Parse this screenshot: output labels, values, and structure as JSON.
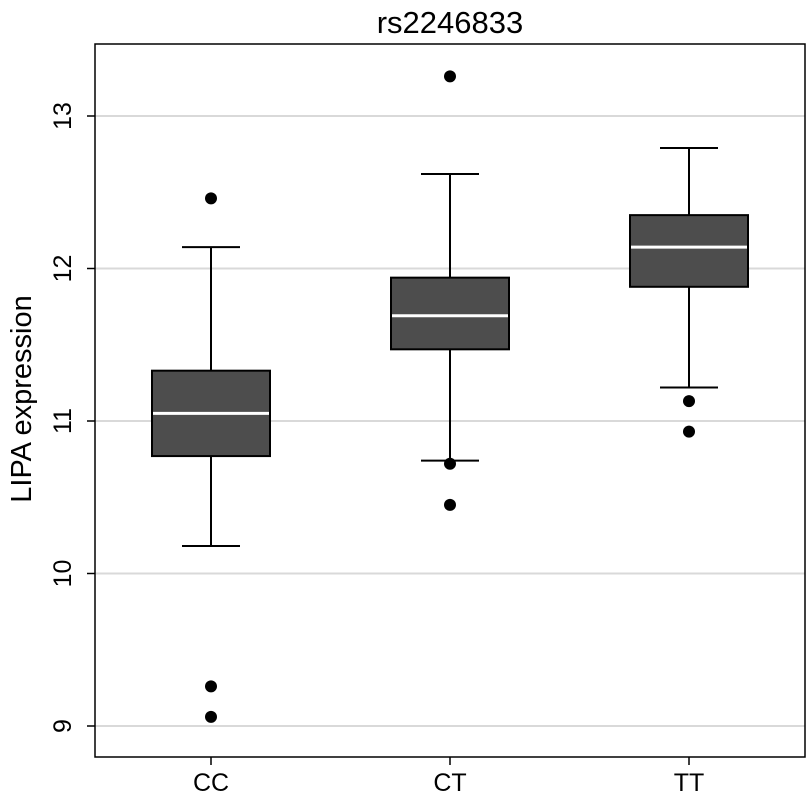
{
  "chart_data": {
    "type": "boxplot",
    "title": "rs2246833",
    "xlabel": "",
    "ylabel": "LIPA expression",
    "categories": [
      "CC",
      "CT",
      "TT"
    ],
    "ylim": [
      8.95,
      13.5
    ],
    "yticks": [
      9,
      10,
      11,
      12,
      13
    ],
    "grid": "horizontal",
    "boxes": [
      {
        "category": "CC",
        "whisker_low": 10.18,
        "q1": 10.77,
        "median": 11.05,
        "q3": 11.33,
        "whisker_high": 12.14,
        "outliers": [
          12.46,
          9.26,
          9.06
        ]
      },
      {
        "category": "CT",
        "whisker_low": 10.74,
        "q1": 11.47,
        "median": 11.69,
        "q3": 11.94,
        "whisker_high": 12.62,
        "outliers": [
          13.26,
          10.72,
          10.45
        ]
      },
      {
        "category": "TT",
        "whisker_low": 11.22,
        "q1": 11.88,
        "median": 12.14,
        "q3": 12.35,
        "whisker_high": 12.79,
        "outliers": [
          11.13,
          10.93
        ]
      }
    ],
    "colors": {
      "box_fill": "#4d4d4d",
      "median_line": "#ffffff",
      "grid": "#d9d9d9",
      "axis": "#000000"
    }
  }
}
